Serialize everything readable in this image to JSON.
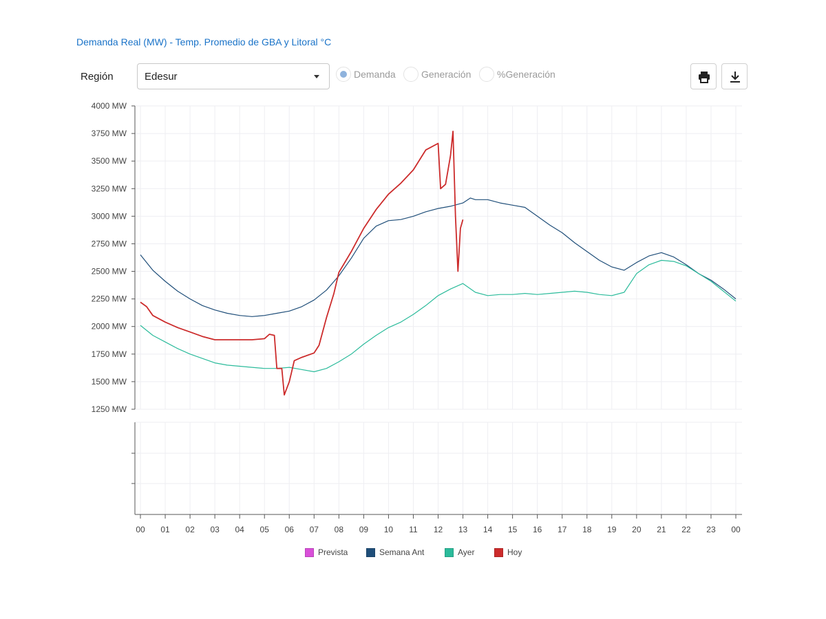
{
  "header": {
    "title": "Demanda Real (MW) - Temp. Promedio de GBA y Litoral °C",
    "region_label": "Región",
    "region_value": "Edesur",
    "radios": [
      {
        "label": "Demanda",
        "checked": true
      },
      {
        "label": "Generación",
        "checked": false
      },
      {
        "label": "%Generación",
        "checked": false
      }
    ],
    "print_icon": "printer-icon",
    "download_icon": "download-icon"
  },
  "chart_data": {
    "type": "line",
    "title": "Demanda Real (MW) - Temp. Promedio de GBA y Litoral °C",
    "xlabel": "",
    "ylabel": "",
    "ylim": [
      1250,
      4000
    ],
    "y_ticks": [
      1250,
      1500,
      1750,
      2000,
      2250,
      2500,
      2750,
      3000,
      3250,
      3500,
      3750,
      4000
    ],
    "y_tick_labels": [
      "1250 MW",
      "1500 MW",
      "1750 MW",
      "2000 MW",
      "2250 MW",
      "2500 MW",
      "2750 MW",
      "3000 MW",
      "3250 MW",
      "3500 MW",
      "3750 MW",
      "4000 MW"
    ],
    "x_ticks": [
      "00",
      "01",
      "02",
      "03",
      "04",
      "05",
      "06",
      "07",
      "08",
      "09",
      "10",
      "11",
      "12",
      "13",
      "14",
      "15",
      "16",
      "17",
      "18",
      "19",
      "20",
      "21",
      "22",
      "23",
      "00"
    ],
    "xlim": [
      0,
      24
    ],
    "grid": true,
    "legend_position": "bottom",
    "series": [
      {
        "name": "Prevista",
        "color": "#d94fd9",
        "x": [],
        "y": []
      },
      {
        "name": "Semana Ant",
        "color": "#1f4e79",
        "x": [
          0,
          0.5,
          1,
          1.5,
          2,
          2.5,
          3,
          3.5,
          4,
          4.5,
          5,
          5.5,
          6,
          6.5,
          7,
          7.5,
          8,
          8.5,
          9,
          9.5,
          10,
          10.5,
          11,
          11.5,
          12,
          12.5,
          13,
          13.3,
          13.5,
          14,
          14.5,
          15,
          15.5,
          16,
          16.5,
          17,
          17.5,
          18,
          18.5,
          19,
          19.5,
          20,
          20.5,
          21,
          21.5,
          22,
          22.5,
          23,
          23.5,
          24
        ],
        "y": [
          2650,
          2510,
          2410,
          2320,
          2250,
          2190,
          2150,
          2120,
          2100,
          2090,
          2100,
          2120,
          2140,
          2180,
          2240,
          2330,
          2460,
          2620,
          2800,
          2910,
          2960,
          2970,
          3000,
          3040,
          3070,
          3090,
          3120,
          3165,
          3150,
          3150,
          3120,
          3100,
          3080,
          3000,
          2920,
          2850,
          2760,
          2680,
          2600,
          2540,
          2510,
          2580,
          2640,
          2670,
          2630,
          2560,
          2480,
          2420,
          2340,
          2250
        ]
      },
      {
        "name": "Ayer",
        "color": "#2bbb9b",
        "x": [
          0,
          0.5,
          1,
          1.5,
          2,
          2.5,
          3,
          3.5,
          4,
          4.5,
          5,
          5.5,
          6,
          6.5,
          7,
          7.5,
          8,
          8.5,
          9,
          9.5,
          10,
          10.5,
          11,
          11.5,
          12,
          12.5,
          13,
          13.5,
          14,
          14.5,
          15,
          15.5,
          16,
          16.5,
          17,
          17.5,
          18,
          18.5,
          19,
          19.5,
          20,
          20.5,
          21,
          21.5,
          22,
          22.5,
          23,
          23.5,
          24
        ],
        "y": [
          2010,
          1920,
          1860,
          1800,
          1750,
          1710,
          1670,
          1650,
          1640,
          1630,
          1620,
          1620,
          1630,
          1610,
          1590,
          1620,
          1680,
          1750,
          1840,
          1920,
          1990,
          2040,
          2110,
          2190,
          2280,
          2340,
          2390,
          2310,
          2280,
          2290,
          2290,
          2300,
          2290,
          2300,
          2310,
          2320,
          2310,
          2290,
          2280,
          2310,
          2480,
          2560,
          2600,
          2590,
          2550,
          2480,
          2410,
          2320,
          2230
        ]
      },
      {
        "name": "Hoy",
        "color": "#cc2b2b",
        "x": [
          0,
          0.25,
          0.5,
          1,
          1.5,
          2,
          2.5,
          3,
          3.5,
          4,
          4.5,
          5,
          5.2,
          5.4,
          5.5,
          5.7,
          5.8,
          6,
          6.2,
          6.5,
          7,
          7.2,
          7.5,
          7.8,
          8,
          8.5,
          9,
          9.5,
          10,
          10.5,
          11,
          11.5,
          12,
          12.1,
          12.3,
          12.5,
          12.6,
          12.7,
          12.8,
          12.9,
          13.0
        ],
        "y": [
          2220,
          2180,
          2100,
          2040,
          1990,
          1950,
          1910,
          1880,
          1880,
          1880,
          1880,
          1890,
          1930,
          1920,
          1620,
          1620,
          1380,
          1500,
          1690,
          1720,
          1760,
          1830,
          2080,
          2300,
          2490,
          2680,
          2890,
          3060,
          3200,
          3300,
          3420,
          3600,
          3660,
          3250,
          3290,
          3550,
          3770,
          3000,
          2500,
          2890,
          2970
        ]
      }
    ]
  },
  "legend": [
    {
      "label": "Prevista",
      "color": "#d94fd9"
    },
    {
      "label": "Semana Ant",
      "color": "#1f4e79"
    },
    {
      "label": "Ayer",
      "color": "#2bbb9b"
    },
    {
      "label": "Hoy",
      "color": "#cc2b2b"
    }
  ]
}
